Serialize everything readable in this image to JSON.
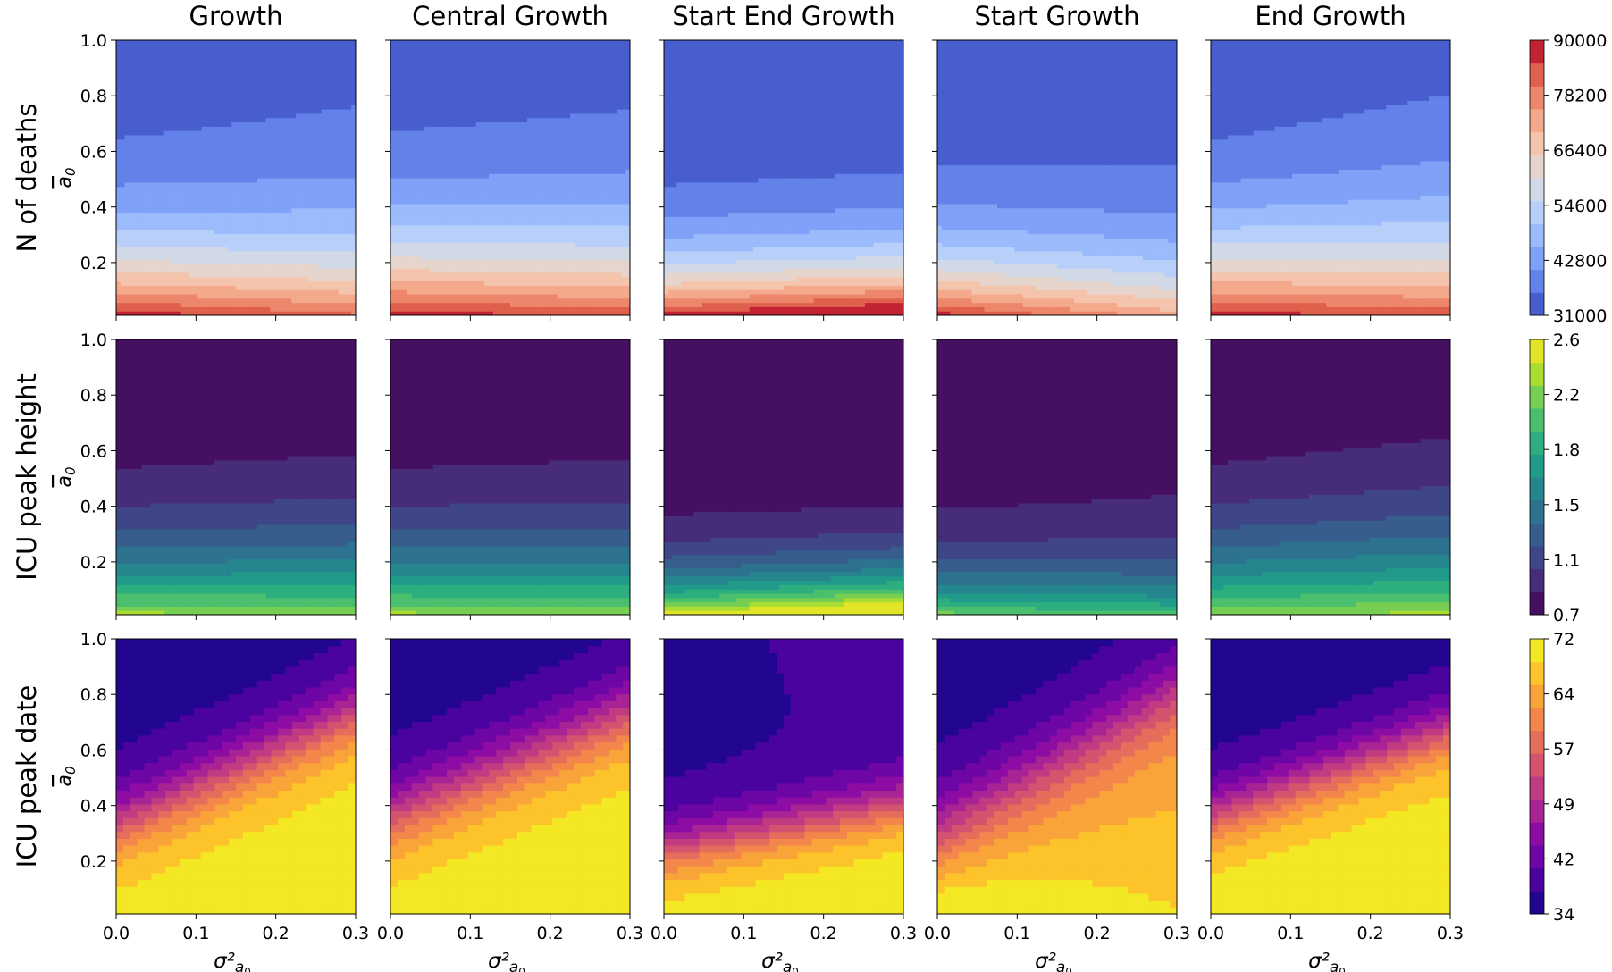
{
  "columns": [
    "Growth",
    "Central Growth",
    "Start End Growth",
    "Start Growth",
    "End Growth"
  ],
  "rows": [
    {
      "label": "N of deaths",
      "ylabel": "a",
      "ylabel_sub": "0",
      "colormap": "coolwarm",
      "colorbar": {
        "ticks": [
          "31000",
          "42800",
          "54600",
          "66400",
          "78200",
          "90000"
        ],
        "levels": 12
      }
    },
    {
      "label": "ICU peak height",
      "ylabel": "a",
      "ylabel_sub": "0",
      "colormap": "viridis",
      "colorbar": {
        "ticks": [
          "0.7",
          "1.1",
          "1.5",
          "1.8",
          "2.2",
          "2.6"
        ],
        "levels": 12
      }
    },
    {
      "label": "ICU peak date",
      "ylabel": "a",
      "ylabel_sub": "0",
      "colormap": "plasma",
      "colorbar": {
        "ticks": [
          "34",
          "42",
          "49",
          "57",
          "64",
          "72"
        ],
        "levels": 12
      }
    }
  ],
  "xaxis": {
    "label": "σ²",
    "label_sub": "a",
    "label_subsub": "0",
    "ticks": [
      "0.0",
      "0.1",
      "0.2",
      "0.3"
    ],
    "range": [
      0,
      0.3
    ]
  },
  "yaxis": {
    "ticks": [
      "0.2",
      "0.4",
      "0.6",
      "0.8",
      "1.0"
    ],
    "range": [
      0.01,
      1.0
    ]
  },
  "chart_data": {
    "type": "heatmap",
    "x_range": [
      0,
      0.3
    ],
    "y_range": [
      0.01,
      1.0
    ],
    "panels": [
      {
        "row": "N of deaths",
        "column": "Growth",
        "colorbar_range": [
          31000,
          90000
        ]
      },
      {
        "row": "N of deaths",
        "column": "Central Growth",
        "colorbar_range": [
          31000,
          90000
        ]
      },
      {
        "row": "N of deaths",
        "column": "Start End Growth",
        "colorbar_range": [
          31000,
          90000
        ]
      },
      {
        "row": "N of deaths",
        "column": "Start Growth",
        "colorbar_range": [
          31000,
          90000
        ]
      },
      {
        "row": "N of deaths",
        "column": "End Growth",
        "colorbar_range": [
          31000,
          90000
        ]
      },
      {
        "row": "ICU peak height",
        "column": "Growth",
        "colorbar_range": [
          0.7,
          2.6
        ]
      },
      {
        "row": "ICU peak height",
        "column": "Central Growth",
        "colorbar_range": [
          0.7,
          2.6
        ]
      },
      {
        "row": "ICU peak height",
        "column": "Start End Growth",
        "colorbar_range": [
          0.7,
          2.6
        ]
      },
      {
        "row": "ICU peak height",
        "column": "Start Growth",
        "colorbar_range": [
          0.7,
          2.6
        ]
      },
      {
        "row": "ICU peak height",
        "column": "End Growth",
        "colorbar_range": [
          0.7,
          2.6
        ]
      },
      {
        "row": "ICU peak date",
        "column": "Growth",
        "colorbar_range": [
          34,
          72
        ]
      },
      {
        "row": "ICU peak date",
        "column": "Central Growth",
        "colorbar_range": [
          34,
          72
        ]
      },
      {
        "row": "ICU peak date",
        "column": "Start End Growth",
        "colorbar_range": [
          34,
          72
        ]
      },
      {
        "row": "ICU peak date",
        "column": "Start Growth",
        "colorbar_range": [
          34,
          72
        ]
      },
      {
        "row": "ICU peak date",
        "column": "End Growth",
        "colorbar_range": [
          34,
          72
        ]
      }
    ]
  }
}
